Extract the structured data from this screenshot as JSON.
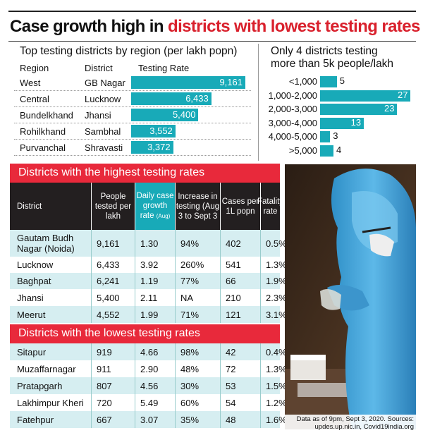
{
  "headline": {
    "part1": "Case growth high in ",
    "part2": "districts with lowest testing rates"
  },
  "colors": {
    "accent_red": "#e8293b",
    "bar_teal": "#18aab8",
    "row_tint": "#d6eef1",
    "header_dark": "#231f20"
  },
  "chart_data": [
    {
      "type": "bar",
      "orientation": "horizontal",
      "title": "Top testing districts by region (per lakh popn)",
      "column_headers": {
        "region": "Region",
        "district": "District",
        "value": "Testing Rate"
      },
      "categories": [
        "West",
        "Central",
        "Bundelkhand",
        "Rohilkhand",
        "Purvanchal"
      ],
      "districts": [
        "GB Nagar",
        "Lucknow",
        "Jhansi",
        "Sambhal",
        "Shravasti"
      ],
      "values": [
        9161,
        6433,
        5400,
        3552,
        3372
      ],
      "value_labels": [
        "9,161",
        "6,433",
        "5,400",
        "3,552",
        "3,372"
      ],
      "xlim": [
        0,
        9161
      ]
    },
    {
      "type": "bar",
      "orientation": "horizontal",
      "title_line1": "Only 4 districts testing",
      "title_line2": "more than 5k people/lakh",
      "categories": [
        "<1,000",
        "1,000-2,000",
        "2,000-3,000",
        "3,000-4,000",
        "4,000-5,000",
        ">5,000"
      ],
      "values": [
        5,
        27,
        23,
        13,
        3,
        4
      ],
      "xlim": [
        0,
        27
      ]
    }
  ],
  "tables": {
    "columns": [
      "District",
      "People tested per lakh",
      "Daily case growth rate",
      "Increase in testing (Aug 3 to Sept 3",
      "Cases per 1L popn",
      "Fatality rate"
    ],
    "growth_note": "(Aug)",
    "highest": {
      "title": "Districts with the highest testing rates",
      "rows": [
        [
          "Gautam Budh Nagar (Noida)",
          "9,161",
          "1.30",
          "94%",
          "402",
          "0.5%"
        ],
        [
          "Lucknow",
          "6,433",
          "3.92",
          "260%",
          "541",
          "1.3%"
        ],
        [
          "Baghpat",
          "6,241",
          "1.19",
          "77%",
          "66",
          "1.9%"
        ],
        [
          "Jhansi",
          "5,400",
          "2.11",
          "NA",
          "210",
          "2.3%"
        ],
        [
          "Meerut",
          "4,552",
          "1.99",
          "71%",
          "121",
          "3.1%"
        ]
      ]
    },
    "lowest": {
      "title": "Districts with the lowest testing rates",
      "rows": [
        [
          "Sitapur",
          "919",
          "4.66",
          "98%",
          "42",
          "0.4%"
        ],
        [
          "Muzaffarnagar",
          "911",
          "2.90",
          "48%",
          "72",
          "1.3%"
        ],
        [
          "Pratapgarh",
          "807",
          "4.56",
          "30%",
          "53",
          "1.5%"
        ],
        [
          "Lakhimpur Kheri",
          "720",
          "5.49",
          "60%",
          "54",
          "1.2%"
        ],
        [
          "Fatehpur",
          "667",
          "3.07",
          "35%",
          "48",
          "1.6%"
        ]
      ]
    }
  },
  "source_note": {
    "line1": "Data as of 9pm, Sept 3, 2020. Sources:",
    "line2": "updes.up.nic.in, Covid19india.org"
  }
}
